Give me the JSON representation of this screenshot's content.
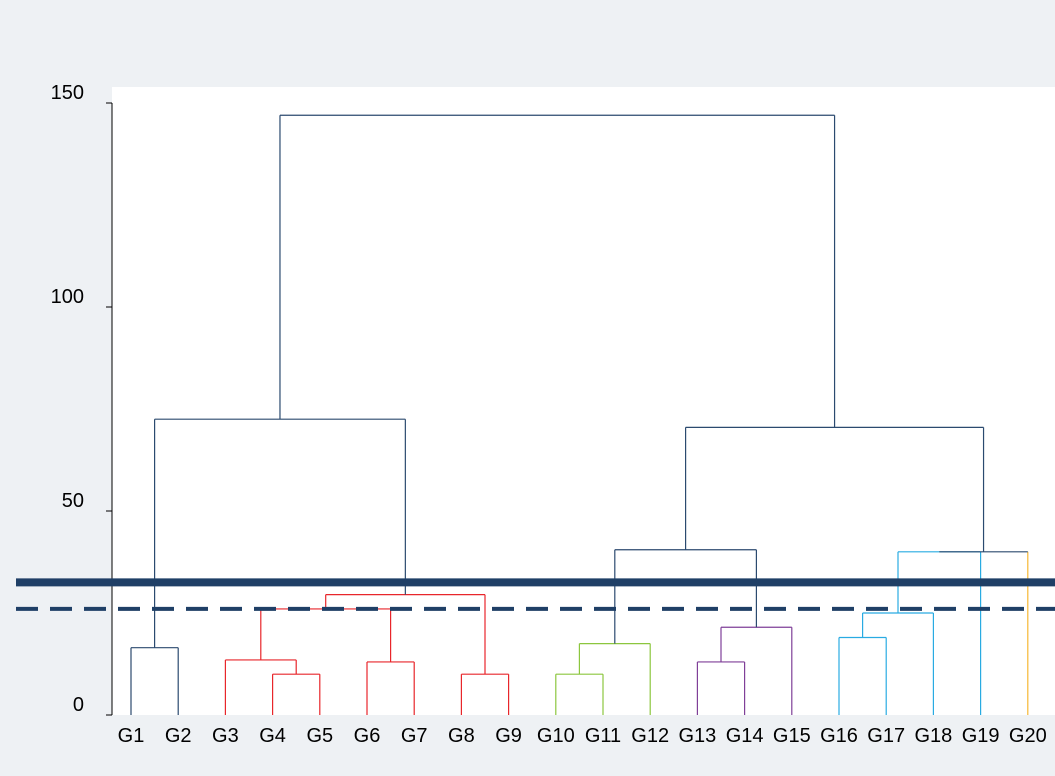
{
  "chart_data": {
    "type": "dendrogram",
    "title": "",
    "xlabel": "",
    "ylabel": "",
    "ylim": [
      0,
      150
    ],
    "yticks": [
      0,
      50,
      100,
      150
    ],
    "leaves": [
      "G1",
      "G2",
      "G3",
      "G4",
      "G5",
      "G6",
      "G7",
      "G8",
      "G9",
      "G10",
      "G11",
      "G12",
      "G13",
      "G14",
      "G15",
      "G16",
      "G17",
      "G18",
      "G19",
      "G20"
    ],
    "colors": {
      "default": "#2b4a6f",
      "red": "#e8262b",
      "green": "#8cc63e",
      "purple": "#7f3f98",
      "cyan": "#29abe2",
      "orange": "#f7b733",
      "threshold": "#1f3f66"
    },
    "merges": [
      {
        "a": "L1",
        "b": "L2",
        "h": 16.5,
        "id": "n1",
        "color": "default"
      },
      {
        "a": "L4",
        "b": "L5",
        "h": 10,
        "id": "n2",
        "color": "red"
      },
      {
        "a": "L3",
        "b": "n2",
        "h": 13.5,
        "id": "n3",
        "color": "red"
      },
      {
        "a": "L6",
        "b": "L7",
        "h": 13,
        "id": "n4",
        "color": "red"
      },
      {
        "a": "n3",
        "b": "n4",
        "h": 26,
        "id": "n5",
        "color": "red"
      },
      {
        "a": "L8",
        "b": "L9",
        "h": 10,
        "id": "n6",
        "color": "red"
      },
      {
        "a": "n5",
        "b": "n6",
        "h": 29.5,
        "id": "n7",
        "color": "red"
      },
      {
        "a": "n1",
        "b": "n7",
        "h": 72.5,
        "id": "n8",
        "color": "default"
      },
      {
        "a": "L10",
        "b": "L11",
        "h": 10,
        "id": "n9",
        "color": "green"
      },
      {
        "a": "n9",
        "b": "L12",
        "h": 17.5,
        "id": "n10",
        "color": "green"
      },
      {
        "a": "L13",
        "b": "L14",
        "h": 13,
        "id": "n11",
        "color": "purple"
      },
      {
        "a": "n11",
        "b": "L15",
        "h": 21.5,
        "id": "n12",
        "color": "purple"
      },
      {
        "a": "n10",
        "b": "n12",
        "h": 40.5,
        "id": "n13",
        "color": "default"
      },
      {
        "a": "L16",
        "b": "L17",
        "h": 19,
        "id": "n14",
        "color": "cyan"
      },
      {
        "a": "n14",
        "b": "L18",
        "h": 25,
        "id": "n15",
        "color": "cyan"
      },
      {
        "a": "n15",
        "b": "L19",
        "h": 40,
        "id": "n16",
        "color": "cyan"
      },
      {
        "a": "n16",
        "b": "L20",
        "h": 40,
        "id": "n17",
        "color": "default",
        "right_color": "orange"
      },
      {
        "a": "n13",
        "b": "n17",
        "h": 70.5,
        "id": "n18",
        "color": "default"
      },
      {
        "a": "n8",
        "b": "n18",
        "h": 147,
        "id": "n19",
        "color": "default"
      }
    ],
    "thresholds": [
      {
        "value": 32.5,
        "style": "solid"
      },
      {
        "value": 26,
        "style": "dashed"
      }
    ],
    "grid": false,
    "legend": "none"
  }
}
